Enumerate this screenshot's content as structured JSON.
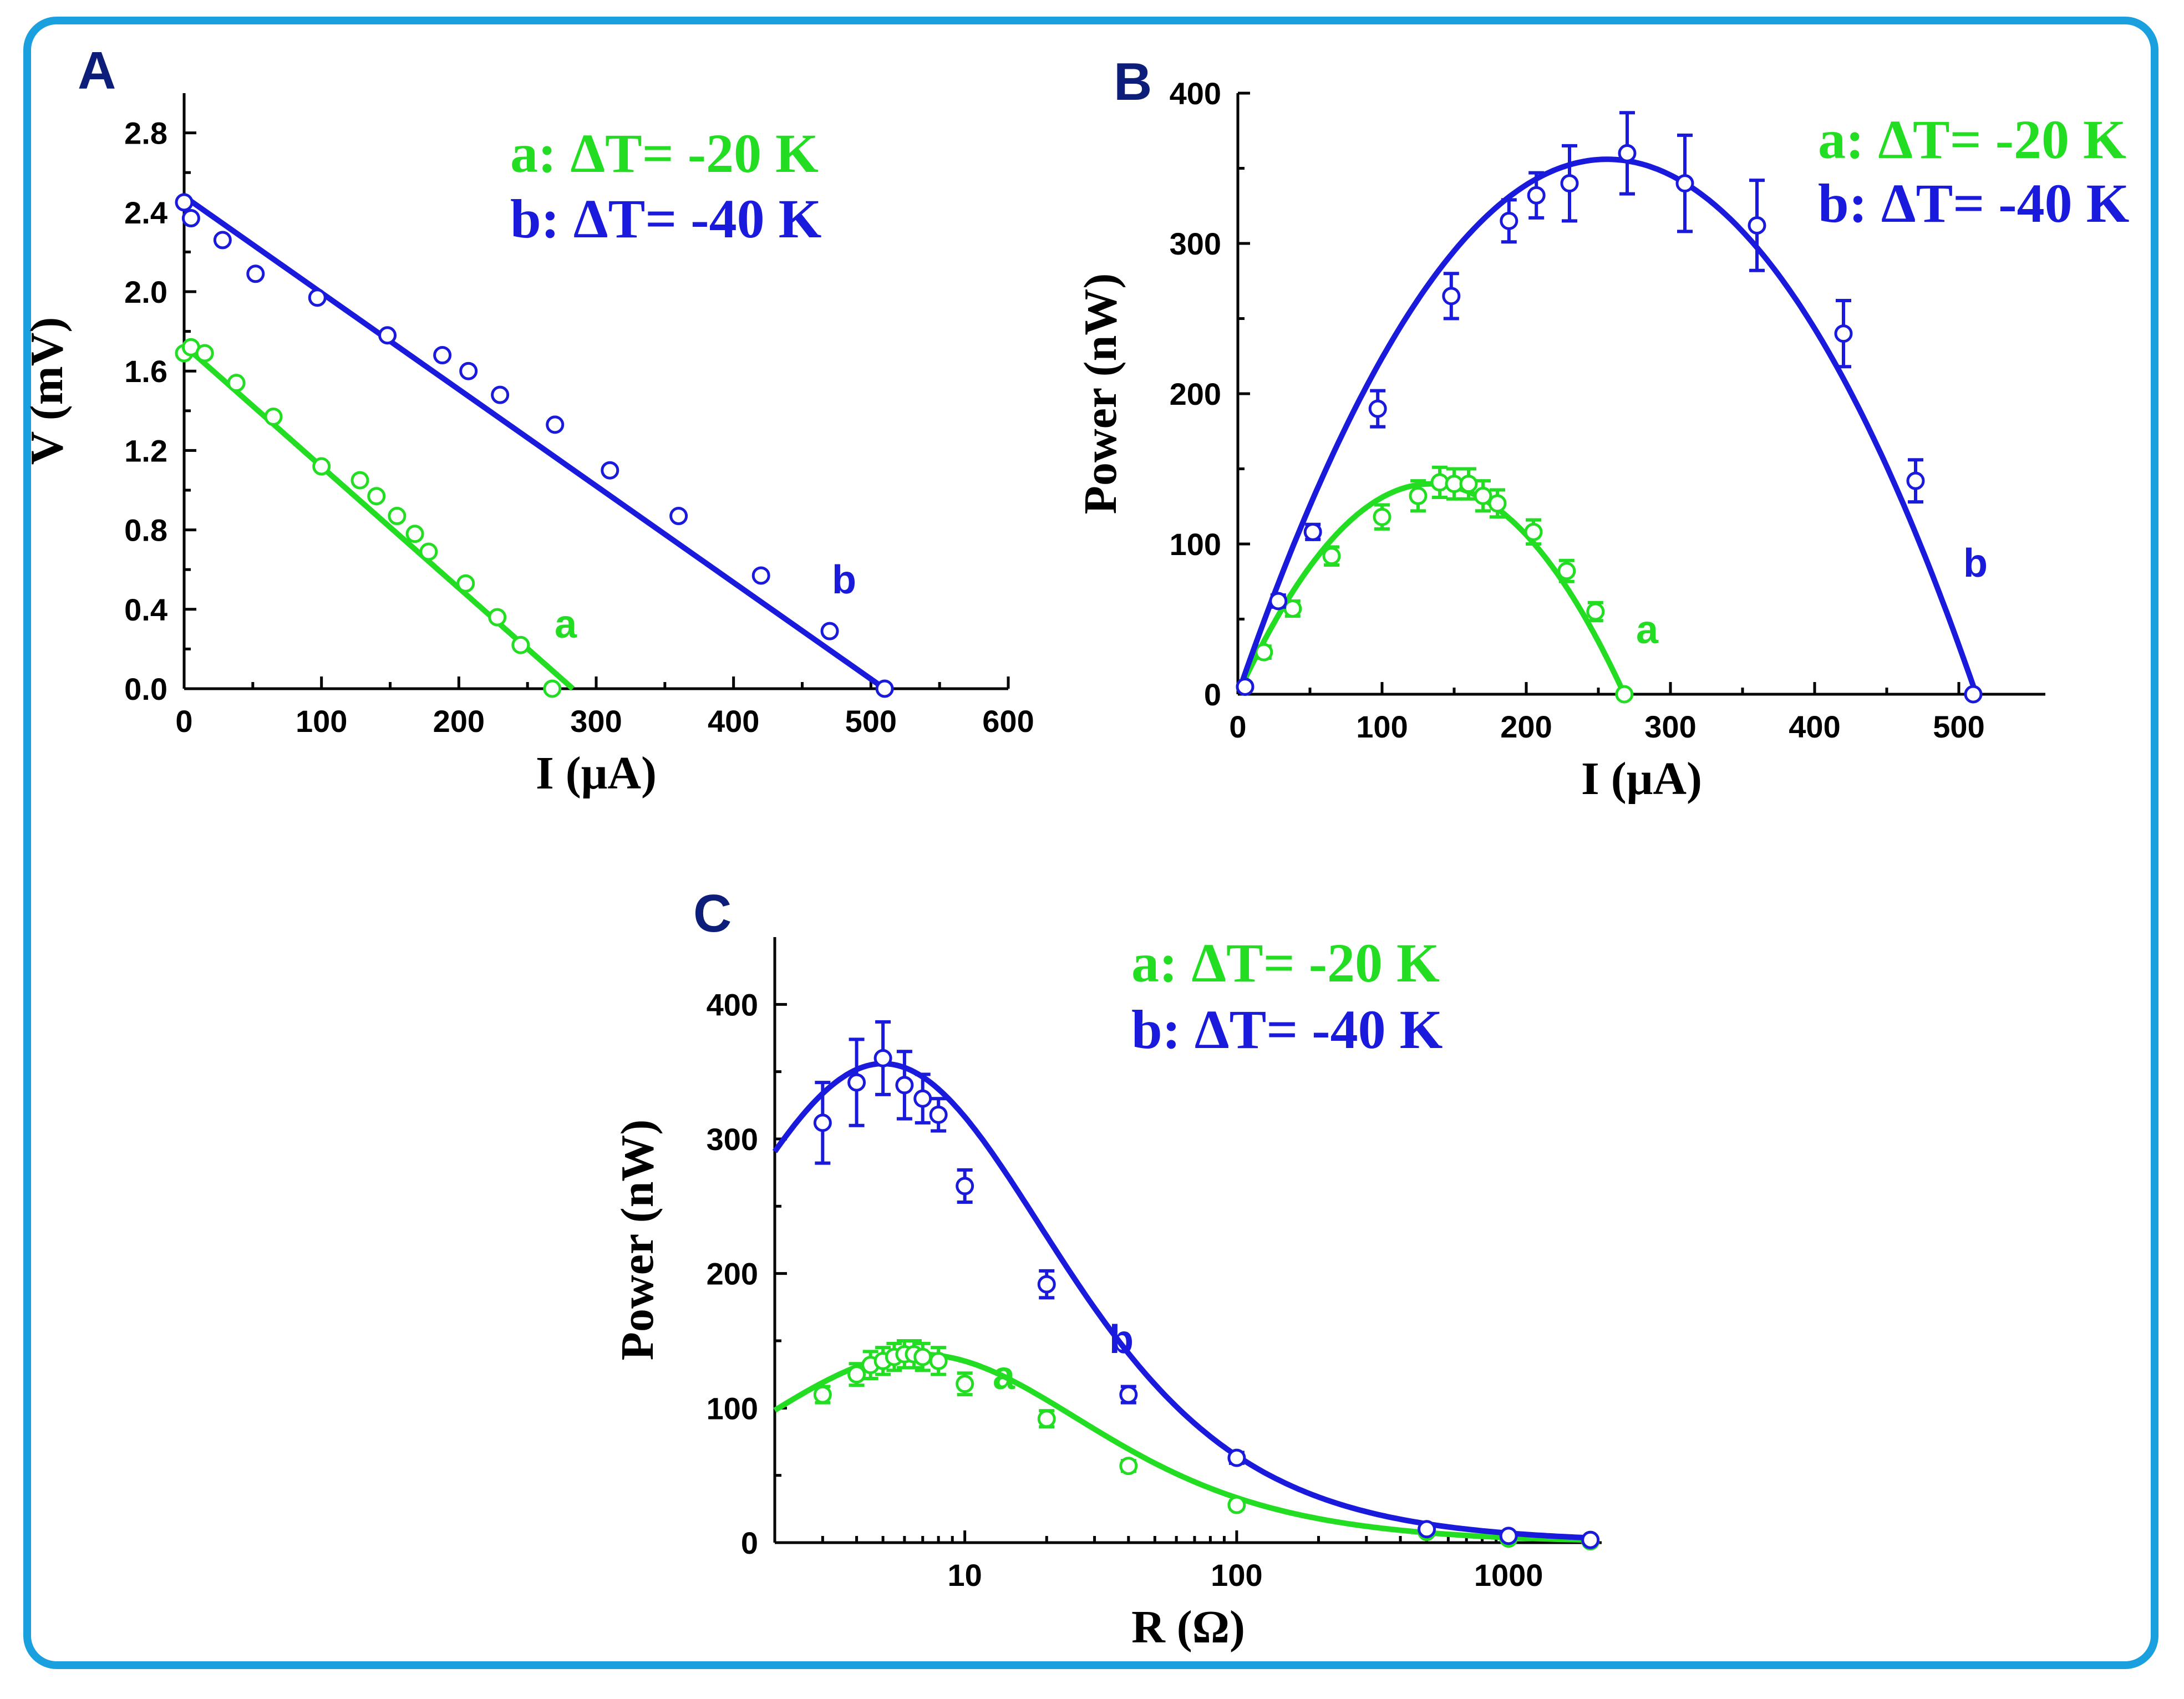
{
  "colors": {
    "a": "#22dd22",
    "b": "#1a1adc",
    "frame": "#1aa0de",
    "panel_label": "#0d1e7a"
  },
  "chart_data": [
    {
      "id": "A",
      "type": "scatter",
      "panel_label": "A",
      "xlabel": "I (μA)",
      "ylabel": "V (mV)",
      "xlim": [
        0,
        600
      ],
      "ylim": [
        0,
        3.0
      ],
      "xticks": [
        0,
        100,
        200,
        300,
        400,
        500,
        600
      ],
      "yticks": [
        0.0,
        0.4,
        0.8,
        1.2,
        1.6,
        2.0,
        2.4,
        2.8
      ],
      "xtick_labels": [
        "0",
        "100",
        "200",
        "300",
        "400",
        "500",
        "600"
      ],
      "ytick_labels": [
        "0.0",
        "0.4",
        "0.8",
        "1.2",
        "1.6",
        "2.0",
        "2.4",
        "2.8"
      ],
      "legend": [
        {
          "key": "a:",
          "text": "ΔT= -20 K",
          "series": "a"
        },
        {
          "key": "b:",
          "text": "ΔT= -40 K",
          "series": "b"
        }
      ],
      "series": [
        {
          "name": "a",
          "label": "a",
          "points": [
            [
              0,
              1.69
            ],
            [
              5,
              1.72
            ],
            [
              15,
              1.69
            ],
            [
              38,
              1.54
            ],
            [
              65,
              1.37
            ],
            [
              100,
              1.12
            ],
            [
              128,
              1.05
            ],
            [
              140,
              0.97
            ],
            [
              155,
              0.87
            ],
            [
              168,
              0.78
            ],
            [
              178,
              0.69
            ],
            [
              205,
              0.53
            ],
            [
              228,
              0.36
            ],
            [
              245,
              0.22
            ],
            [
              268,
              0.0
            ]
          ],
          "fit": [
            [
              0,
              1.73
            ],
            [
              283,
              0.0
            ]
          ]
        },
        {
          "name": "b",
          "label": "b",
          "points": [
            [
              0,
              2.45
            ],
            [
              5,
              2.37
            ],
            [
              28,
              2.26
            ],
            [
              52,
              2.09
            ],
            [
              97,
              1.97
            ],
            [
              148,
              1.78
            ],
            [
              188,
              1.68
            ],
            [
              207,
              1.6
            ],
            [
              230,
              1.48
            ],
            [
              270,
              1.33
            ],
            [
              310,
              1.1
            ],
            [
              360,
              0.87
            ],
            [
              420,
              0.57
            ],
            [
              470,
              0.29
            ],
            [
              510,
              0.0
            ]
          ],
          "fit": [
            [
              0,
              2.48
            ],
            [
              510,
              0.0
            ]
          ]
        }
      ]
    },
    {
      "id": "B",
      "type": "scatter",
      "panel_label": "B",
      "xlabel": "I (μA)",
      "ylabel": "Power (nW)",
      "xlim": [
        0,
        560
      ],
      "ylim": [
        0,
        400
      ],
      "xticks": [
        0,
        100,
        200,
        300,
        400,
        500
      ],
      "yticks": [
        0,
        100,
        200,
        300,
        400
      ],
      "xtick_labels": [
        "0",
        "100",
        "200",
        "300",
        "400",
        "500"
      ],
      "ytick_labels": [
        "0",
        "100",
        "200",
        "300",
        "400"
      ],
      "legend": [
        {
          "key": "a:",
          "text": "ΔT= -20 K",
          "series": "a"
        },
        {
          "key": "b:",
          "text": "ΔT= -40 K",
          "series": "b"
        }
      ],
      "series": [
        {
          "name": "a",
          "label": "a",
          "points": [
            [
              5,
              5
            ],
            [
              18,
              28
            ],
            [
              38,
              57
            ],
            [
              65,
              92
            ],
            [
              100,
              118
            ],
            [
              125,
              132
            ],
            [
              140,
              141
            ],
            [
              150,
              140
            ],
            [
              160,
              140
            ],
            [
              170,
              132
            ],
            [
              180,
              127
            ],
            [
              205,
              108
            ],
            [
              228,
              82
            ],
            [
              248,
              55
            ],
            [
              268,
              0
            ]
          ],
          "errors": [
            0,
            4,
            5,
            6,
            8,
            10,
            10,
            10,
            10,
            10,
            9,
            8,
            7,
            6,
            0
          ],
          "curve": {
            "i_sc": 268,
            "p_max": 140
          }
        },
        {
          "name": "b",
          "label": "b",
          "points": [
            [
              5,
              5
            ],
            [
              28,
              62
            ],
            [
              52,
              108
            ],
            [
              97,
              190
            ],
            [
              148,
              265
            ],
            [
              188,
              315
            ],
            [
              207,
              332
            ],
            [
              230,
              340
            ],
            [
              270,
              360
            ],
            [
              310,
              340
            ],
            [
              360,
              312
            ],
            [
              420,
              240
            ],
            [
              470,
              142
            ],
            [
              510,
              0
            ]
          ],
          "errors": [
            0,
            4,
            5,
            12,
            15,
            14,
            15,
            25,
            27,
            32,
            30,
            22,
            14,
            0
          ],
          "curve": {
            "i_sc": 512,
            "p_max": 356
          }
        }
      ]
    },
    {
      "id": "C",
      "type": "scatter",
      "panel_label": "C",
      "xlabel": "R (Ω)",
      "ylabel": "Power (nW)",
      "xscale": "log",
      "xlim": [
        2,
        2200
      ],
      "ylim": [
        0,
        450
      ],
      "xticks": [
        10,
        100,
        1000
      ],
      "yticks": [
        0,
        100,
        200,
        300,
        400
      ],
      "xtick_labels": [
        "10",
        "100",
        "1000"
      ],
      "ytick_labels": [
        "0",
        "100",
        "200",
        "300",
        "400"
      ],
      "legend": [
        {
          "key": "a:",
          "text": "ΔT= -20 K",
          "series": "a"
        },
        {
          "key": "b:",
          "text": "ΔT= -40 K",
          "series": "b"
        }
      ],
      "series": [
        {
          "name": "a",
          "label": "a",
          "points": [
            [
              3,
              110
            ],
            [
              4,
              125
            ],
            [
              4.5,
              132
            ],
            [
              5,
              135
            ],
            [
              5.5,
              138
            ],
            [
              6,
              140
            ],
            [
              6.5,
              140
            ],
            [
              7,
              138
            ],
            [
              8,
              135
            ],
            [
              10,
              118
            ],
            [
              20,
              92
            ],
            [
              40,
              57
            ],
            [
              100,
              28
            ],
            [
              500,
              8
            ],
            [
              1000,
              3
            ],
            [
              2000,
              1
            ]
          ],
          "errors": [
            6,
            8,
            10,
            10,
            10,
            10,
            10,
            10,
            10,
            8,
            6,
            4,
            3,
            2,
            1,
            1
          ],
          "curve": {
            "r_int": 6.8,
            "p_max": 140
          }
        },
        {
          "name": "b",
          "label": "b",
          "points": [
            [
              3,
              312
            ],
            [
              4,
              342
            ],
            [
              5,
              360
            ],
            [
              6,
              340
            ],
            [
              7,
              330
            ],
            [
              8,
              318
            ],
            [
              10,
              265
            ],
            [
              20,
              192
            ],
            [
              40,
              110
            ],
            [
              100,
              63
            ],
            [
              500,
              10
            ],
            [
              1000,
              5
            ],
            [
              2000,
              2
            ]
          ],
          "errors": [
            30,
            32,
            27,
            25,
            18,
            12,
            12,
            10,
            6,
            4,
            2,
            2,
            1
          ],
          "curve": {
            "r_int": 5.0,
            "p_max": 356
          }
        }
      ]
    }
  ]
}
